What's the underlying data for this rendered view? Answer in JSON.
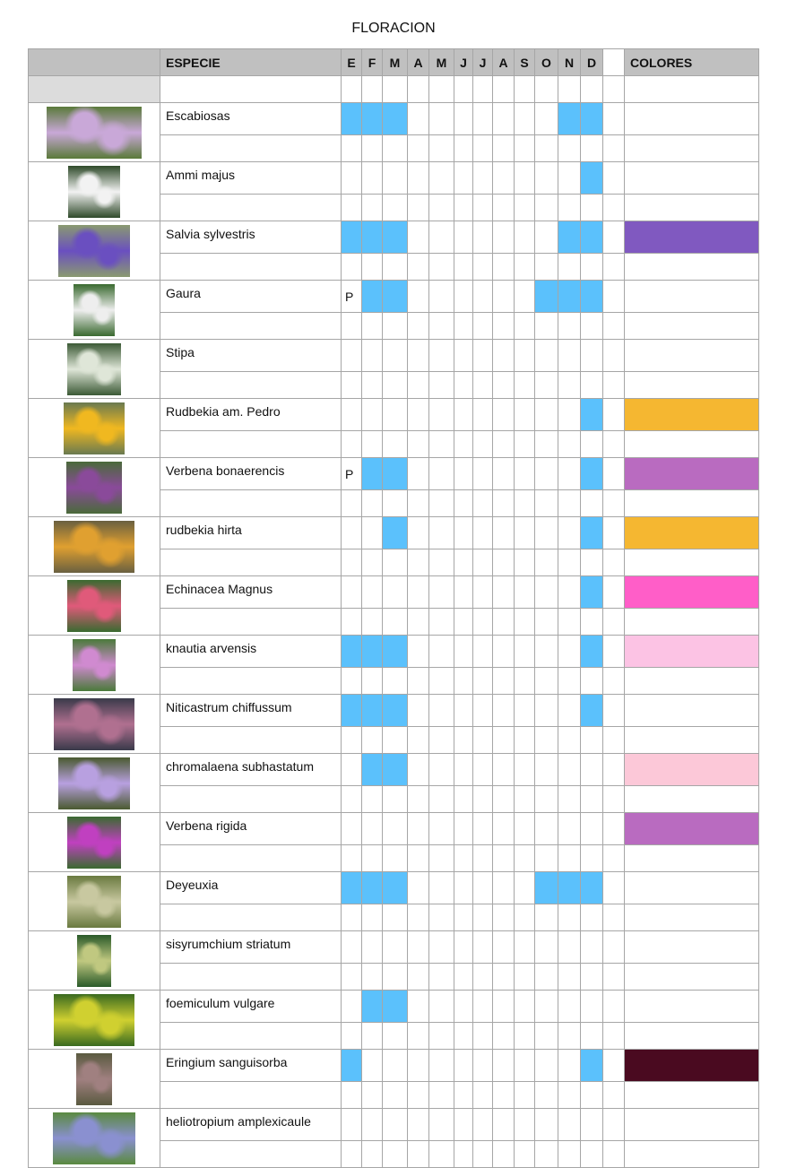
{
  "title": "FLORACION",
  "header": {
    "species": "ESPECIE",
    "months": [
      "E",
      "F",
      "M",
      "A",
      "M",
      "J",
      "J",
      "A",
      "S",
      "O",
      "N",
      "D"
    ],
    "colors": "COLORES"
  },
  "accent": "#5bc1fc",
  "species": [
    {
      "name": "Escabiosas",
      "months": [
        0,
        1,
        2,
        10,
        11
      ],
      "mark": "",
      "color": null,
      "photo": [
        "#c9a8d8",
        "#5a7a3a"
      ],
      "pw": 106
    },
    {
      "name": "Ammi majus",
      "months": [
        11
      ],
      "mark": "",
      "color": null,
      "photo": [
        "#f2f2f2",
        "#2f4a2a"
      ],
      "pw": 58
    },
    {
      "name": "Salvia sylvestris",
      "months": [
        0,
        1,
        2,
        10,
        11
      ],
      "mark": "",
      "color": "#8059c0",
      "photo": [
        "#6a4fc0",
        "#8a9a70"
      ],
      "pw": 80
    },
    {
      "name": "Gaura",
      "months": [
        1,
        2,
        9,
        10,
        11
      ],
      "mark": "P",
      "color": null,
      "photo": [
        "#eeeeee",
        "#3a6a30"
      ],
      "pw": 46
    },
    {
      "name": "Stipa",
      "months": [],
      "mark": "",
      "color": null,
      "photo": [
        "#dfe6d8",
        "#3c5a36"
      ],
      "pw": 60
    },
    {
      "name": "Rudbekia am. Pedro",
      "months": [
        11
      ],
      "mark": "",
      "color": "#f5b731",
      "photo": [
        "#f0b820",
        "#6a7a50"
      ],
      "pw": 68
    },
    {
      "name": "Verbena bonaerencis",
      "months": [
        1,
        2,
        11
      ],
      "mark": "P",
      "color": "#b96bc0",
      "photo": [
        "#8a4a9a",
        "#4a6a3a"
      ],
      "pw": 62
    },
    {
      "name": "rudbekia hirta",
      "months": [
        2,
        11
      ],
      "mark": "",
      "color": "#f5b731",
      "photo": [
        "#e0a030",
        "#6a6040"
      ],
      "pw": 90
    },
    {
      "name": "Echinacea Magnus",
      "months": [
        11
      ],
      "mark": "",
      "color": "#ff5ec8",
      "photo": [
        "#e05a7a",
        "#3a6a30"
      ],
      "pw": 60
    },
    {
      "name": "knautia arvensis",
      "months": [
        0,
        1,
        2,
        11
      ],
      "mark": "",
      "color": "#fcc3e4",
      "photo": [
        "#d08ad0",
        "#4a7a3a"
      ],
      "pw": 48
    },
    {
      "name": "Niticastrum chiffussum",
      "months": [
        0,
        1,
        2,
        11
      ],
      "mark": "",
      "color": null,
      "photo": [
        "#b07090",
        "#3a3a4a"
      ],
      "pw": 90
    },
    {
      "name": "chromalaena subhastatum",
      "months": [
        1,
        2
      ],
      "mark": "",
      "color": "#fcc8d8",
      "photo": [
        "#b8a0e0",
        "#4a5a30"
      ],
      "pw": 80
    },
    {
      "name": "Verbena rigida",
      "months": [],
      "mark": "",
      "color": "#b96bc0",
      "photo": [
        "#c040c0",
        "#3a6a30"
      ],
      "pw": 60
    },
    {
      "name": "Deyeuxia",
      "months": [
        0,
        1,
        2,
        9,
        10,
        11
      ],
      "mark": "",
      "color": null,
      "photo": [
        "#c8c8a0",
        "#6a7a40"
      ],
      "pw": 60
    },
    {
      "name": "sisyrumchium striatum",
      "months": [],
      "mark": "",
      "color": null,
      "photo": [
        "#c0c880",
        "#2a5a2a"
      ],
      "pw": 38
    },
    {
      "name": "foemiculum vulgare",
      "months": [
        1,
        2
      ],
      "mark": "",
      "color": null,
      "photo": [
        "#d0d030",
        "#3a6a20"
      ],
      "pw": 90
    },
    {
      "name": "Eringium sanguisorba",
      "months": [
        0,
        11
      ],
      "mark": "",
      "color": "#4a0a20",
      "photo": [
        "#a08080",
        "#5a5a40"
      ],
      "pw": 40
    },
    {
      "name": "heliotropium amplexicaule",
      "months": [],
      "mark": "",
      "color": null,
      "photo": [
        "#8a90d0",
        "#5a8a40"
      ],
      "pw": 92
    }
  ]
}
